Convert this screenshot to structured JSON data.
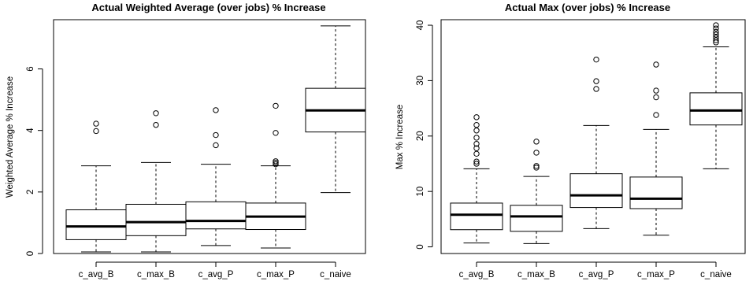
{
  "chart_data": [
    {
      "type": "boxplot",
      "title": "Actual Weighted Average (over jobs) % Increase",
      "xlabel": "",
      "ylabel": "Weighted Average % Increase",
      "ylim": [
        0,
        7.6
      ],
      "yticks": [
        0,
        2,
        4,
        6
      ],
      "categories": [
        "c_avg_B",
        "c_max_B",
        "c_avg_P",
        "c_max_P",
        "c_naive"
      ],
      "boxes": [
        {
          "whisker_low": 0.05,
          "q1": 0.45,
          "median": 0.88,
          "q3": 1.42,
          "whisker_high": 2.85,
          "outliers": [
            3.98,
            4.22
          ]
        },
        {
          "whisker_low": 0.05,
          "q1": 0.58,
          "median": 1.02,
          "q3": 1.6,
          "whisker_high": 2.96,
          "outliers": [
            4.18,
            4.56
          ]
        },
        {
          "whisker_low": 0.26,
          "q1": 0.8,
          "median": 1.06,
          "q3": 1.68,
          "whisker_high": 2.9,
          "outliers": [
            3.52,
            3.85,
            4.66
          ]
        },
        {
          "whisker_low": 0.18,
          "q1": 0.78,
          "median": 1.2,
          "q3": 1.64,
          "whisker_high": 2.85,
          "outliers": [
            2.9,
            2.95,
            3.0,
            3.92,
            4.8
          ]
        },
        {
          "whisker_low": 1.98,
          "q1": 3.95,
          "median": 4.65,
          "q3": 5.37,
          "whisker_high": 7.4,
          "outliers": []
        }
      ]
    },
    {
      "type": "boxplot",
      "title": "Actual Max (over jobs) % Increase",
      "xlabel": "",
      "ylabel": "Max % Increase",
      "ylim": [
        -1.2,
        41
      ],
      "yticks": [
        0,
        10,
        20,
        30,
        40
      ],
      "categories": [
        "c_avg_B",
        "c_max_B",
        "c_avg_P",
        "c_max_P",
        "c_naive"
      ],
      "boxes": [
        {
          "whisker_low": 0.7,
          "q1": 3.1,
          "median": 5.8,
          "q3": 7.9,
          "whisker_high": 14.1,
          "outliers": [
            15.0,
            15.4,
            16.8,
            17.8,
            18.6,
            19.7,
            21.0,
            22.0,
            23.4
          ]
        },
        {
          "whisker_low": 0.6,
          "q1": 2.8,
          "median": 5.5,
          "q3": 7.5,
          "whisker_high": 12.7,
          "outliers": [
            14.3,
            14.6,
            17.0,
            19.0
          ]
        },
        {
          "whisker_low": 3.3,
          "q1": 7.1,
          "median": 9.3,
          "q3": 13.2,
          "whisker_high": 21.9,
          "outliers": [
            28.5,
            29.9,
            33.8
          ]
        },
        {
          "whisker_low": 2.1,
          "q1": 6.9,
          "median": 8.7,
          "q3": 12.6,
          "whisker_high": 21.2,
          "outliers": [
            23.8,
            27.0,
            28.2,
            32.9
          ]
        },
        {
          "whisker_low": 14.1,
          "q1": 22.0,
          "median": 24.6,
          "q3": 27.8,
          "whisker_high": 36.1,
          "outliers": [
            36.9,
            37.3,
            37.8,
            38.3,
            38.8,
            39.4,
            40.0
          ]
        }
      ]
    }
  ]
}
